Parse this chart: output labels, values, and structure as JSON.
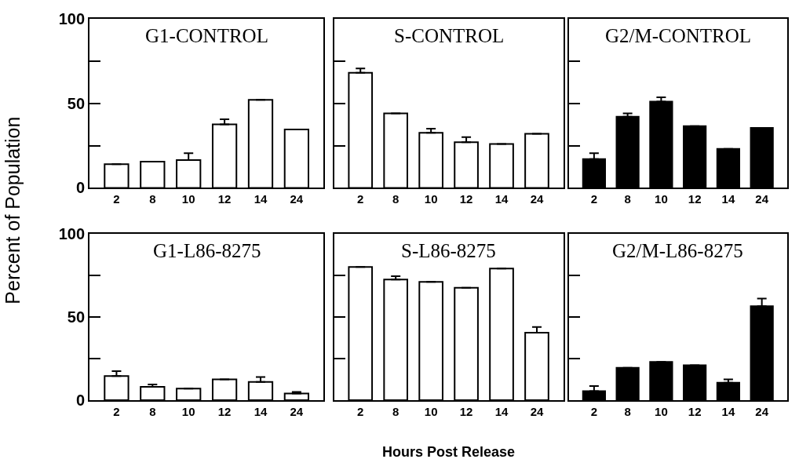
{
  "chart_data": [
    {
      "type": "bar",
      "title": "G1-CONTROL",
      "ylabel": "Percent of Population",
      "categories": [
        "2",
        "8",
        "10",
        "12",
        "14",
        "24"
      ],
      "series": [
        {
          "color": "#ffffff",
          "values": [
            14,
            15.5,
            16.5,
            37.5,
            52,
            34.5
          ],
          "errors": [
            null,
            null,
            [
              16.5,
              20.5
            ],
            [
              37.5,
              40.5
            ],
            null,
            null
          ]
        }
      ],
      "ylim": [
        0,
        100
      ],
      "yticks": [
        0,
        {
          "value": 25,
          "label": null
        },
        50,
        {
          "value": 75,
          "label": null
        },
        100
      ]
    },
    {
      "type": "bar",
      "title": "S-CONTROL",
      "categories": [
        "2",
        "8",
        "10",
        "12",
        "14",
        "24"
      ],
      "series": [
        {
          "color": "#ffffff",
          "values": [
            68,
            44,
            32.5,
            27,
            26,
            32
          ],
          "errors": [
            [
              68,
              70.5
            ],
            null,
            [
              32.5,
              35
            ],
            [
              27,
              30
            ],
            null,
            null
          ]
        }
      ],
      "ylim": [
        0,
        100
      ],
      "yticks": [
        {
          "value": 0,
          "label": null
        },
        {
          "value": 25,
          "label": null
        },
        {
          "value": 50,
          "label": null
        },
        {
          "value": 75,
          "label": null
        },
        {
          "value": 100,
          "label": null
        }
      ],
      "tick_labels": "x"
    },
    {
      "type": "bar",
      "title": "G2/M-CONTROL",
      "categories": [
        "2",
        "8",
        "10",
        "12",
        "14",
        "24"
      ],
      "series": [
        {
          "color": "#000000",
          "values": [
            17,
            42,
            51,
            36.5,
            23,
            35.5
          ],
          "errors": [
            [
              17,
              20.5
            ],
            [
              42,
              44
            ],
            [
              51,
              53.5
            ],
            null,
            null,
            null
          ]
        }
      ],
      "ylim": [
        0,
        100
      ],
      "yticks": [
        {
          "value": 0,
          "label": null
        },
        {
          "value": 25,
          "label": null
        },
        {
          "value": 50,
          "label": null
        },
        {
          "value": 75,
          "label": null
        },
        {
          "value": 100,
          "label": null
        }
      ],
      "tick_labels": "x"
    },
    {
      "type": "bar",
      "title": "G1-L86-8275",
      "categories": [
        "2",
        "8",
        "10",
        "12",
        "14",
        "24"
      ],
      "series": [
        {
          "color": "#ffffff",
          "values": [
            14.5,
            8,
            7,
            12.5,
            11,
            4
          ],
          "errors": [
            [
              14.5,
              17.5
            ],
            [
              8,
              9.5
            ],
            null,
            null,
            [
              11,
              14
            ],
            [
              4,
              5
            ]
          ]
        }
      ],
      "ylim": [
        0,
        100
      ],
      "yticks": [
        0,
        {
          "value": 25,
          "label": null
        },
        50,
        {
          "value": 75,
          "label": null
        },
        100
      ]
    },
    {
      "type": "bar",
      "title": "S-L86-8275",
      "xlabel": "Hours Post Release",
      "categories": [
        "2",
        "8",
        "10",
        "12",
        "14",
        "24"
      ],
      "series": [
        {
          "color": "#ffffff",
          "values": [
            80,
            72.5,
            71,
            67.5,
            79,
            40.5
          ],
          "errors": [
            null,
            [
              72.5,
              74.5
            ],
            null,
            null,
            null,
            [
              40.5,
              44
            ]
          ]
        }
      ],
      "ylim": [
        0,
        100
      ],
      "yticks": [
        {
          "value": 0,
          "label": null
        },
        {
          "value": 25,
          "label": null
        },
        {
          "value": 50,
          "label": null
        },
        {
          "value": 75,
          "label": null
        },
        {
          "value": 100,
          "label": null
        }
      ],
      "tick_labels": "x"
    },
    {
      "type": "bar",
      "title": "G2/M-L86-8275",
      "categories": [
        "2",
        "8",
        "10",
        "12",
        "14",
        "24"
      ],
      "series": [
        {
          "color": "#000000",
          "values": [
            5.5,
            19.5,
            23,
            21,
            10.5,
            56.5
          ],
          "errors": [
            [
              5.5,
              8.5
            ],
            null,
            null,
            null,
            [
              10.5,
              12.5
            ],
            [
              56.5,
              61
            ]
          ]
        }
      ],
      "ylim": [
        0,
        100
      ],
      "yticks": [
        {
          "value": 0,
          "label": null
        },
        {
          "value": 25,
          "label": null
        },
        {
          "value": 50,
          "label": null
        },
        {
          "value": 75,
          "label": null
        },
        {
          "value": 100,
          "label": null
        }
      ],
      "tick_labels": "x"
    }
  ]
}
